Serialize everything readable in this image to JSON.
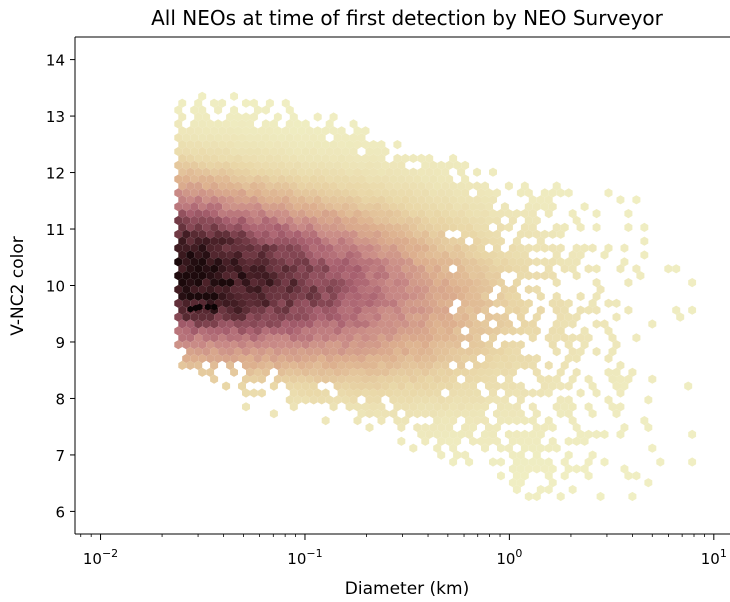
{
  "chart_data": {
    "type": "heatmap",
    "subtype": "hexbin",
    "title": "All NEOs at time of first detection by NEO Surveyor",
    "xlabel": "Diameter (km)",
    "ylabel": "V-NC2 color",
    "xscale": "log",
    "xlim": [
      0.0075,
      12
    ],
    "ylim": [
      5.6,
      14.4
    ],
    "x_ticks": [
      {
        "value": 0.01,
        "base": "10",
        "exp": "−2"
      },
      {
        "value": 0.1,
        "base": "10",
        "exp": "−1"
      },
      {
        "value": 1,
        "base": "10",
        "exp": "0"
      },
      {
        "value": 10,
        "base": "10",
        "exp": "1"
      }
    ],
    "y_ticks": [
      "6",
      "7",
      "8",
      "9",
      "10",
      "11",
      "12",
      "13",
      "14"
    ],
    "grid": false,
    "colormap": [
      "#f0efc4",
      "#e9d6a6",
      "#ddb08e",
      "#c98a86",
      "#a96170",
      "#7a3f4b",
      "#4a2128",
      "#150608"
    ],
    "density_regions": [
      {
        "diameter_range_km": [
          0.024,
          0.06
        ],
        "color_range": [
          8.6,
          13.1
        ],
        "relative_density": 0.95
      },
      {
        "diameter_range_km": [
          0.06,
          0.25
        ],
        "color_range": [
          8.3,
          12.6
        ],
        "relative_density": 0.7
      },
      {
        "diameter_range_km": [
          0.25,
          0.8
        ],
        "color_range": [
          7.8,
          12.0
        ],
        "relative_density": 0.35
      },
      {
        "diameter_range_km": [
          0.8,
          3.0
        ],
        "color_range": [
          6.3,
          11.5
        ],
        "relative_density": 0.08
      },
      {
        "diameter_range_km": [
          3.0,
          8.0
        ],
        "color_range": [
          6.0,
          11.5
        ],
        "relative_density": 0.02
      }
    ],
    "peak_density_point": {
      "diameter_km": 0.03,
      "color": 9.6
    }
  }
}
